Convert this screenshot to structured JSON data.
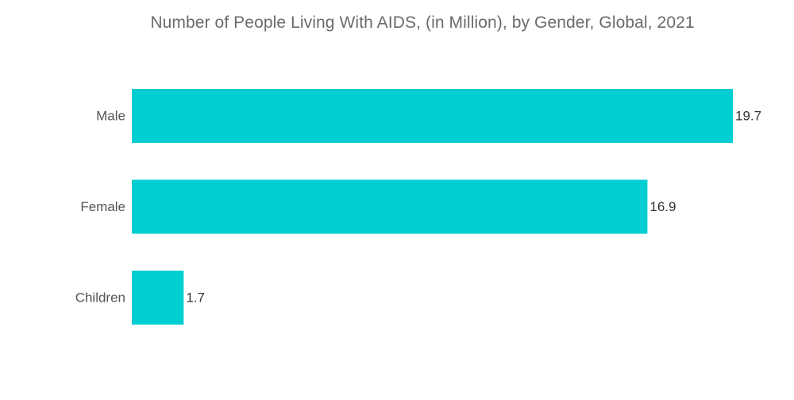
{
  "chart_data": {
    "type": "bar",
    "orientation": "horizontal",
    "title": "Number of People Living With AIDS, (in Million), by Gender, Global, 2021",
    "categories": [
      "Male",
      "Female",
      "Children"
    ],
    "values": [
      19.7,
      16.9,
      1.7
    ],
    "data_labels": [
      "19.7",
      "16.9",
      "1.7"
    ],
    "xlim": [
      0,
      19.7
    ],
    "grid": false,
    "legend": "none",
    "bar_color": "#00CED1"
  }
}
